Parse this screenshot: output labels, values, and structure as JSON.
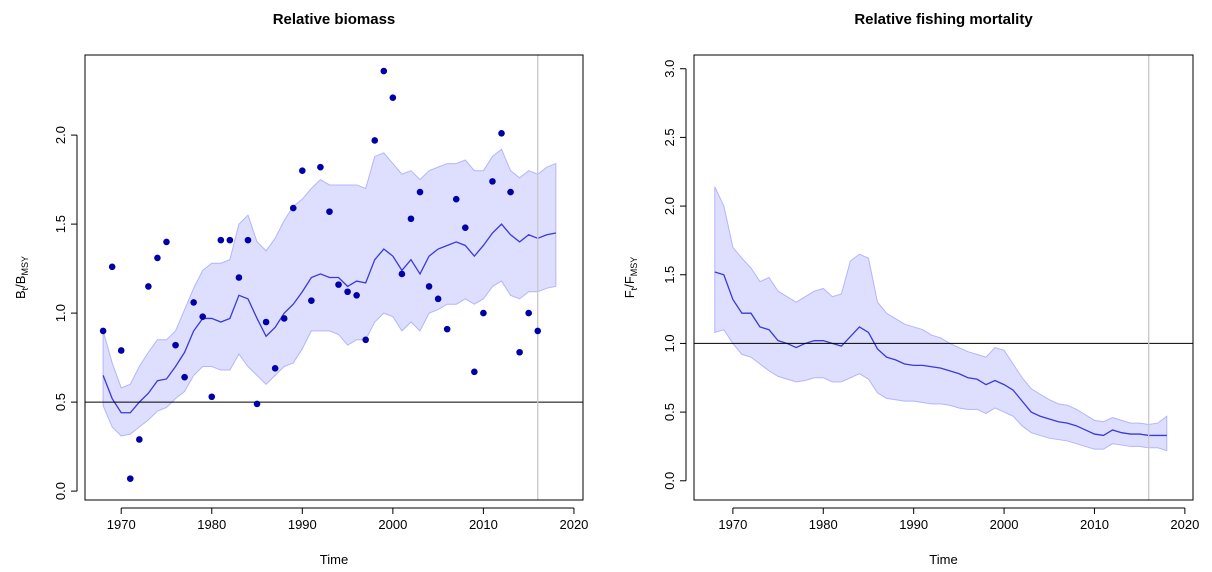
{
  "chart_data": [
    {
      "type": "line",
      "title": "Relative biomass",
      "xlabel": "Time",
      "ylabel": [
        "B",
        "t",
        "/B",
        "MSY"
      ],
      "xlim": [
        1966,
        2021
      ],
      "xticks": [
        1970,
        1980,
        1990,
        2000,
        2010,
        2020
      ],
      "ylim": [
        -0.05,
        2.45
      ],
      "yticks": [
        {
          "value": 0,
          "label": "0.0"
        },
        0.5,
        {
          "value": 1,
          "label": "1.0"
        },
        1.5,
        {
          "value": 2,
          "label": "2.0"
        }
      ],
      "x": [
        1968,
        1969,
        1970,
        1971,
        1972,
        1973,
        1974,
        1975,
        1976,
        1977,
        1978,
        1979,
        1980,
        1981,
        1982,
        1983,
        1984,
        1985,
        1986,
        1987,
        1988,
        1989,
        1990,
        1991,
        1992,
        1993,
        1994,
        1995,
        1996,
        1997,
        1998,
        1999,
        2000,
        2001,
        2002,
        2003,
        2004,
        2005,
        2006,
        2007,
        2008,
        2009,
        2010,
        2011,
        2012,
        2013,
        2014,
        2015,
        2016,
        2017,
        2018
      ],
      "values": [
        0.65,
        0.52,
        0.44,
        0.44,
        0.5,
        0.55,
        0.62,
        0.63,
        0.7,
        0.78,
        0.9,
        0.97,
        0.97,
        0.95,
        0.97,
        1.1,
        1.08,
        0.97,
        0.87,
        0.92,
        1.0,
        1.05,
        1.12,
        1.2,
        1.22,
        1.2,
        1.2,
        1.15,
        1.18,
        1.17,
        1.3,
        1.36,
        1.32,
        1.24,
        1.3,
        1.22,
        1.32,
        1.36,
        1.38,
        1.4,
        1.38,
        1.32,
        1.38,
        1.45,
        1.5,
        1.44,
        1.4,
        1.44,
        1.42,
        1.44,
        1.45
      ],
      "color": "#3a3ad8",
      "band": {
        "color": "#dedeff",
        "upper": [
          0.9,
          0.72,
          0.58,
          0.6,
          0.7,
          0.78,
          0.85,
          0.85,
          0.9,
          1.02,
          1.14,
          1.24,
          1.28,
          1.28,
          1.3,
          1.5,
          1.55,
          1.4,
          1.35,
          1.42,
          1.52,
          1.6,
          1.64,
          1.7,
          1.75,
          1.72,
          1.72,
          1.72,
          1.72,
          1.7,
          1.88,
          1.9,
          1.84,
          1.78,
          1.8,
          1.75,
          1.8,
          1.82,
          1.84,
          1.84,
          1.86,
          1.8,
          1.8,
          1.88,
          1.92,
          1.8,
          1.76,
          1.8,
          1.78,
          1.82,
          1.84
        ],
        "lower": [
          0.48,
          0.36,
          0.31,
          0.32,
          0.36,
          0.4,
          0.45,
          0.47,
          0.52,
          0.56,
          0.65,
          0.7,
          0.7,
          0.68,
          0.68,
          0.77,
          0.7,
          0.65,
          0.6,
          0.65,
          0.7,
          0.72,
          0.8,
          0.9,
          0.9,
          0.9,
          0.88,
          0.82,
          0.85,
          0.85,
          0.95,
          1.0,
          0.98,
          0.9,
          0.95,
          0.9,
          1.0,
          1.02,
          1.05,
          1.05,
          1.08,
          1.05,
          1.08,
          1.15,
          1.18,
          1.1,
          1.08,
          1.12,
          1.12,
          1.14,
          1.15
        ]
      },
      "points": {
        "color": "#0000a8",
        "x": [
          1968,
          1969,
          1970,
          1971,
          1972,
          1973,
          1974,
          1975,
          1976,
          1977,
          1978,
          1979,
          1980,
          1981,
          1982,
          1983,
          1984,
          1985,
          1986,
          1987,
          1988,
          1989,
          1990,
          1991,
          1992,
          1993,
          1994,
          1995,
          1996,
          1997,
          1998,
          1999,
          2000,
          2001,
          2002,
          2003,
          2004,
          2005,
          2006,
          2007,
          2008,
          2009,
          2010,
          2011,
          2012,
          2013,
          2014,
          2015,
          2016
        ],
        "values": [
          0.9,
          1.26,
          0.79,
          0.07,
          0.29,
          1.15,
          1.31,
          1.4,
          0.82,
          0.64,
          1.06,
          0.98,
          0.53,
          1.41,
          1.41,
          1.2,
          1.41,
          0.49,
          0.95,
          0.69,
          0.97,
          1.59,
          1.8,
          1.07,
          1.82,
          1.57,
          1.16,
          1.12,
          1.1,
          0.85,
          1.97,
          2.36,
          2.21,
          1.22,
          1.53,
          1.68,
          1.15,
          1.08,
          0.91,
          1.64,
          1.48,
          0.67,
          1.0,
          1.74,
          2.01,
          1.68,
          0.78,
          1.0,
          0.9
        ]
      },
      "reference_line": 0.5,
      "vertical_line": 2016
    },
    {
      "type": "line",
      "title": "Relative fishing mortality",
      "xlabel": "Time",
      "ylabel": [
        "F",
        "t",
        "/F",
        "MSY"
      ],
      "xlim": [
        1965.7,
        2020.9
      ],
      "xticks": [
        1970,
        1980,
        1990,
        2000,
        2010,
        2020
      ],
      "ylim": [
        -0.14,
        3.1
      ],
      "yticks": [
        {
          "value": 0,
          "label": "0.0"
        },
        0.5,
        {
          "value": 1,
          "label": "1.0"
        },
        1.5,
        {
          "value": 2,
          "label": "2.0"
        },
        2.5,
        {
          "value": 3,
          "label": "3.0"
        }
      ],
      "x": [
        1968,
        1969,
        1970,
        1971,
        1972,
        1973,
        1974,
        1975,
        1976,
        1977,
        1978,
        1979,
        1980,
        1981,
        1982,
        1983,
        1984,
        1985,
        1986,
        1987,
        1988,
        1989,
        1990,
        1991,
        1992,
        1993,
        1994,
        1995,
        1996,
        1997,
        1998,
        1999,
        2000,
        2001,
        2002,
        2003,
        2004,
        2005,
        2006,
        2007,
        2008,
        2009,
        2010,
        2011,
        2012,
        2013,
        2014,
        2015,
        2016,
        2017,
        2018
      ],
      "values": [
        1.52,
        1.5,
        1.32,
        1.22,
        1.22,
        1.12,
        1.1,
        1.02,
        1.0,
        0.97,
        1.0,
        1.02,
        1.02,
        1.0,
        0.98,
        1.05,
        1.12,
        1.08,
        0.96,
        0.9,
        0.88,
        0.85,
        0.84,
        0.84,
        0.83,
        0.82,
        0.8,
        0.78,
        0.75,
        0.74,
        0.7,
        0.73,
        0.7,
        0.66,
        0.58,
        0.5,
        0.47,
        0.45,
        0.43,
        0.42,
        0.4,
        0.37,
        0.34,
        0.33,
        0.37,
        0.35,
        0.34,
        0.34,
        0.33,
        0.33,
        0.33
      ],
      "color": "#3a3ad8",
      "band": {
        "color": "#dedeff",
        "upper": [
          2.14,
          2.0,
          1.7,
          1.62,
          1.55,
          1.45,
          1.48,
          1.38,
          1.34,
          1.3,
          1.34,
          1.38,
          1.4,
          1.34,
          1.36,
          1.6,
          1.65,
          1.62,
          1.3,
          1.22,
          1.18,
          1.14,
          1.12,
          1.1,
          1.06,
          1.04,
          1.0,
          0.97,
          0.94,
          0.92,
          0.9,
          0.97,
          0.95,
          0.85,
          0.75,
          0.67,
          0.63,
          0.59,
          0.56,
          0.55,
          0.52,
          0.48,
          0.44,
          0.43,
          0.46,
          0.44,
          0.42,
          0.42,
          0.41,
          0.42,
          0.47
        ],
        "lower": [
          1.08,
          1.1,
          1.0,
          0.92,
          0.9,
          0.85,
          0.8,
          0.76,
          0.74,
          0.72,
          0.73,
          0.75,
          0.75,
          0.72,
          0.72,
          0.75,
          0.78,
          0.74,
          0.64,
          0.6,
          0.59,
          0.58,
          0.58,
          0.57,
          0.56,
          0.56,
          0.55,
          0.53,
          0.52,
          0.52,
          0.49,
          0.53,
          0.5,
          0.47,
          0.4,
          0.35,
          0.33,
          0.31,
          0.3,
          0.29,
          0.27,
          0.25,
          0.23,
          0.23,
          0.27,
          0.26,
          0.25,
          0.25,
          0.24,
          0.24,
          0.22
        ]
      },
      "reference_line": 1,
      "vertical_line": 2016
    }
  ]
}
